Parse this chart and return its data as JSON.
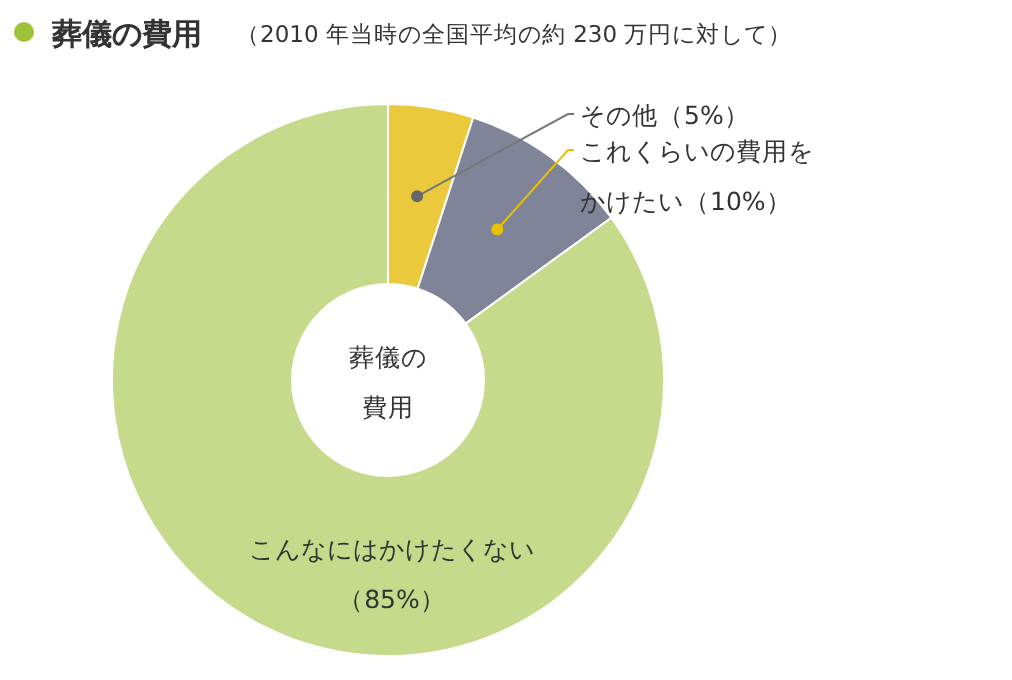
{
  "chart_data": {
    "type": "donut",
    "title": "葬儀の費用",
    "subtitle": "（2010 年当時の全国平均の約 230 万円に対して）",
    "categories": [
      "その他",
      "これくらいの費用をかけたい",
      "こんなにはかけたくない"
    ],
    "values": [
      5,
      10,
      85
    ],
    "value_labels": [
      "（5%）",
      "（10%）",
      "（85%）"
    ],
    "colors": [
      "#ebc93c",
      "#7f8498",
      "#c5da8a"
    ],
    "annotations": [
      "葬儀の費用"
    ]
  }
}
